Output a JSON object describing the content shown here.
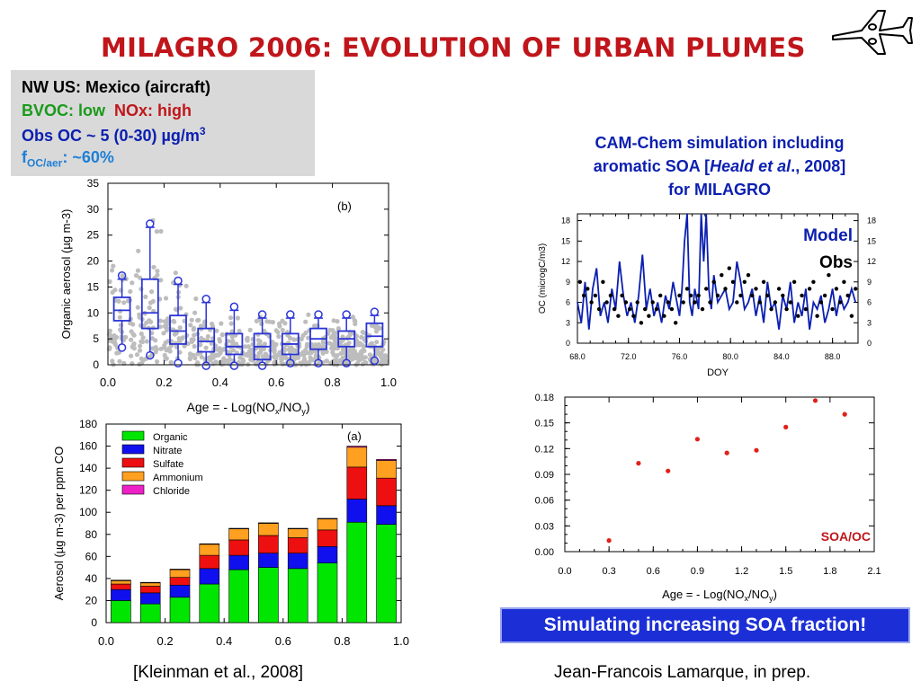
{
  "slide": {
    "title": "MILAGRO 2006: EVOLUTION OF URBAN PLUMES",
    "info": {
      "line1": "NW US: Mexico (aircraft)",
      "bvoc": "BVOC: low",
      "nox": "NOx: high",
      "obs_oc": "Obs OC ~ 5 (0-30) µg/m",
      "obs_oc_sup": "3",
      "foc_f": "f",
      "foc_sub": "OC/aer",
      "foc_val": ": ~60%"
    },
    "cam_caption": {
      "line1": "CAM-Chem simulation including",
      "line2a": "aromatic SOA [",
      "line2b": "Heald et al",
      "line2c": "., 2008]",
      "line3": "for MILAGRO"
    },
    "banner": "Simulating increasing SOA fraction!",
    "ref_left": "[Kleinman et al., 2008]",
    "ref_right": "Jean-Francois Lamarque, in prep.",
    "colors": {
      "title": "#c0161b",
      "bvoc": "#1a9a1a",
      "nox": "#c0161b",
      "blue": "#0b1fb0",
      "foc": "#1e7fd6",
      "banner": "#1c2fd6"
    }
  },
  "chart_data": [
    {
      "id": "b",
      "type": "box",
      "panel_label": "(b)",
      "xlabel_pre": "Age = - Log(NO",
      "xlabel_sub1": "x",
      "xlabel_mid": "/NO",
      "xlabel_sub2": "y",
      "xlabel_post": ")",
      "ylabel": "Organic aerosol (µg m-3)",
      "xlim": [
        0,
        1.0
      ],
      "ylim": [
        0,
        35
      ],
      "xticks": [
        "0.0",
        "0.2",
        "0.4",
        "0.6",
        "0.8",
        "1.0"
      ],
      "yticks": [
        "0",
        "5",
        "10",
        "15",
        "20",
        "25",
        "30",
        "35"
      ],
      "boxes": [
        {
          "x": 0.05,
          "min": 4.0,
          "q1": 8.5,
          "median": 10.5,
          "q3": 13.0,
          "max": 16.5
        },
        {
          "x": 0.15,
          "min": 2.5,
          "q1": 7.0,
          "median": 10.0,
          "q3": 16.5,
          "max": 26.5
        },
        {
          "x": 0.25,
          "min": 1.0,
          "q1": 4.0,
          "median": 6.5,
          "q3": 9.5,
          "max": 15.5
        },
        {
          "x": 0.35,
          "min": 0.5,
          "q1": 2.5,
          "median": 4.5,
          "q3": 7.0,
          "max": 12.0
        },
        {
          "x": 0.45,
          "min": 0.5,
          "q1": 2.0,
          "median": 3.5,
          "q3": 6.0,
          "max": 10.5
        },
        {
          "x": 0.55,
          "min": 0.5,
          "q1": 1.0,
          "median": 3.5,
          "q3": 6.0,
          "max": 9.0
        },
        {
          "x": 0.65,
          "min": 1.0,
          "q1": 2.0,
          "median": 4.0,
          "q3": 6.0,
          "max": 9.0
        },
        {
          "x": 0.75,
          "min": 1.0,
          "q1": 3.0,
          "median": 5.0,
          "q3": 7.0,
          "max": 9.0
        },
        {
          "x": 0.85,
          "min": 1.0,
          "q1": 3.5,
          "median": 5.0,
          "q3": 6.5,
          "max": 9.0
        },
        {
          "x": 0.95,
          "min": 1.5,
          "q1": 3.5,
          "median": 5.5,
          "q3": 8.0,
          "max": 9.5
        }
      ]
    },
    {
      "id": "a",
      "type": "stacked_bar",
      "panel_label": "(a)",
      "ylabel": "Aerosol (µg m-3) per ppm CO",
      "xlim": [
        0,
        1.0
      ],
      "ylim": [
        0,
        180
      ],
      "xticks": [
        "0.0",
        "0.2",
        "0.4",
        "0.6",
        "0.8",
        "1.0"
      ],
      "yticks": [
        "0",
        "20",
        "40",
        "60",
        "80",
        "100",
        "120",
        "140",
        "160",
        "180"
      ],
      "x": [
        0.05,
        0.15,
        0.25,
        0.35,
        0.45,
        0.55,
        0.65,
        0.75,
        0.85,
        0.95
      ],
      "series": [
        {
          "name": "Organic",
          "color": "#00e600",
          "values": [
            20,
            17,
            23,
            35,
            48,
            50,
            49,
            54,
            91,
            89
          ]
        },
        {
          "name": "Nitrate",
          "color": "#1010ee",
          "values": [
            10,
            10,
            11,
            14,
            13,
            13,
            14,
            15,
            21,
            17
          ]
        },
        {
          "name": "Sulfate",
          "color": "#ee1010",
          "values": [
            5,
            6,
            7,
            12,
            14,
            16,
            14,
            15,
            29,
            25
          ]
        },
        {
          "name": "Ammonium",
          "color": "#ffa020",
          "values": [
            3,
            3,
            7,
            10,
            10,
            11,
            8,
            10,
            18,
            16
          ]
        },
        {
          "name": "Chloride",
          "color": "#ee20c8",
          "values": [
            0.5,
            0.5,
            0.5,
            0.5,
            0.5,
            0.5,
            0.5,
            0.5,
            1,
            1
          ]
        }
      ]
    },
    {
      "id": "cam",
      "type": "line",
      "ylabel": "OC (microgC/m3)",
      "xlabel": "DOY",
      "xlim": [
        68,
        90
      ],
      "ylim": [
        0,
        19
      ],
      "xticks": [
        "68.0",
        "72.0",
        "76.0",
        "80.0",
        "84.0",
        "88.0"
      ],
      "yticks": [
        "0",
        "3",
        "6",
        "9",
        "12",
        "15",
        "18"
      ],
      "legend": [
        {
          "name": "Model",
          "color": "#0b1fb0"
        },
        {
          "name": "Obs",
          "color": "#000000"
        }
      ],
      "series": [
        {
          "name": "Model",
          "x": [
            68.0,
            68.3,
            68.6,
            68.9,
            69.2,
            69.5,
            69.8,
            70.1,
            70.4,
            70.7,
            71.0,
            71.3,
            71.6,
            71.9,
            72.2,
            72.5,
            72.8,
            73.1,
            73.4,
            73.7,
            74.0,
            74.3,
            74.6,
            74.9,
            75.2,
            75.5,
            75.8,
            76.0,
            76.2,
            76.4,
            76.6,
            76.8,
            77.0,
            77.2,
            77.5,
            77.7,
            77.9,
            78.1,
            78.3,
            78.5,
            78.7,
            79.0,
            79.3,
            79.6,
            79.9,
            80.2,
            80.5,
            80.8,
            81.1,
            81.4,
            81.7,
            82.0,
            82.3,
            82.6,
            82.9,
            83.2,
            83.5,
            83.8,
            84.1,
            84.4,
            84.7,
            85.0,
            85.3,
            85.6,
            85.9,
            86.2,
            86.5,
            86.8,
            87.1,
            87.4,
            87.7,
            88.0,
            88.3,
            88.6,
            88.9,
            89.2,
            89.5,
            89.8
          ],
          "y": [
            6,
            3,
            9,
            2,
            8,
            11,
            4,
            6,
            3,
            8,
            5,
            12,
            7,
            4,
            6,
            3,
            7,
            13,
            5,
            8,
            4,
            6,
            3,
            7,
            5,
            9,
            6,
            4,
            8,
            15,
            19,
            6,
            4,
            8,
            5,
            19,
            12,
            19,
            8,
            5,
            10,
            6,
            7,
            8,
            5,
            6,
            12,
            9,
            5,
            6,
            8,
            4,
            7,
            3,
            9,
            5,
            6,
            2,
            7,
            5,
            9,
            3,
            6,
            4,
            8,
            2,
            6,
            5,
            7,
            3,
            5,
            8,
            4,
            7,
            5,
            6,
            8,
            6
          ]
        },
        {
          "name": "Obs",
          "x": [
            68.2,
            68.5,
            68.8,
            69.1,
            69.4,
            69.7,
            70.0,
            70.3,
            70.6,
            70.9,
            71.2,
            71.5,
            71.8,
            72.1,
            72.4,
            72.7,
            73.0,
            73.3,
            73.6,
            73.9,
            74.2,
            74.5,
            74.8,
            75.1,
            75.4,
            75.7,
            76.0,
            76.3,
            76.6,
            76.9,
            77.2,
            77.5,
            77.8,
            78.1,
            78.4,
            78.7,
            79.0,
            79.3,
            79.6,
            79.9,
            80.2,
            80.5,
            80.8,
            81.1,
            81.4,
            81.7,
            82.0,
            82.3,
            82.6,
            82.9,
            83.2,
            83.5,
            83.8,
            84.1,
            84.4,
            84.7,
            85.0,
            85.3,
            85.6,
            85.9,
            86.2,
            86.5,
            86.8,
            87.1,
            87.4,
            87.7,
            88.0,
            88.3,
            88.6,
            88.9,
            89.2,
            89.5,
            89.8
          ],
          "y": [
            9,
            7,
            8,
            6,
            7,
            5,
            9,
            6,
            7,
            5,
            4,
            7,
            6,
            5,
            4,
            6,
            3,
            5,
            4,
            6,
            5,
            7,
            4,
            6,
            5,
            3,
            7,
            6,
            8,
            7,
            6,
            7,
            5,
            8,
            6,
            9,
            7,
            10,
            8,
            11,
            9,
            6,
            7,
            9,
            10,
            7,
            8,
            6,
            9,
            7,
            5,
            6,
            8,
            7,
            5,
            6,
            9,
            4,
            7,
            5,
            8,
            9,
            4,
            6,
            7,
            10,
            5,
            8,
            6,
            9,
            7,
            4,
            8
          ]
        }
      ]
    },
    {
      "id": "soa",
      "type": "scatter",
      "annotation": "SOA/OC",
      "xlabel_pre": "Age = - Log(NO",
      "xlabel_sub1": "x",
      "xlabel_mid": "/NO",
      "xlabel_sub2": "y",
      "xlabel_post": ")",
      "xlim": [
        0,
        2.1
      ],
      "ylim": [
        0,
        0.18
      ],
      "xticks": [
        "0.0",
        "0.3",
        "0.6",
        "0.9",
        "1.2",
        "1.5",
        "1.8",
        "2.1"
      ],
      "yticks": [
        "0.00",
        "0.03",
        "0.06",
        "0.09",
        "0.12",
        "0.15",
        "0.18"
      ],
      "x": [
        0.3,
        0.5,
        0.7,
        0.9,
        1.1,
        1.3,
        1.5,
        1.7,
        1.9
      ],
      "y": [
        0.013,
        0.103,
        0.094,
        0.131,
        0.115,
        0.118,
        0.145,
        0.176,
        0.16
      ]
    }
  ]
}
